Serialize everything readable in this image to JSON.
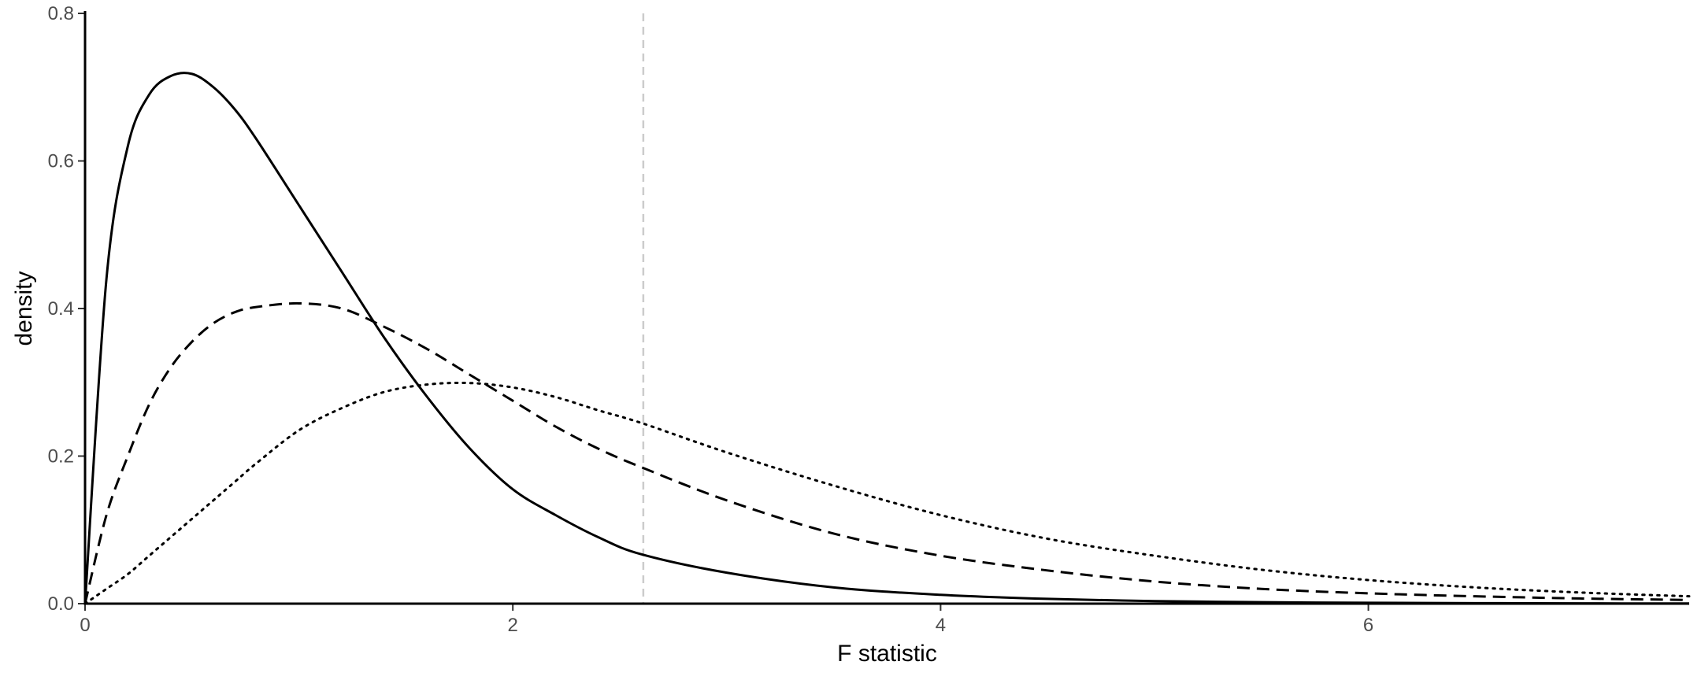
{
  "chart_data": {
    "type": "line",
    "title": "",
    "xlabel": "F statistic",
    "ylabel": "density",
    "xlim": [
      0,
      7.5
    ],
    "ylim": [
      0,
      0.8
    ],
    "x_ticks": [
      0,
      2,
      4,
      6
    ],
    "y_ticks": [
      0.0,
      0.2,
      0.4,
      0.6,
      0.8
    ],
    "x_tick_labels": [
      "0",
      "2",
      "4",
      "6"
    ],
    "y_tick_labels": [
      "0.0",
      "0.2",
      "0.4",
      "0.6",
      "0.8"
    ],
    "grid": false,
    "legend": "none",
    "reference_line": {
      "x": 2.61,
      "style": "dashed",
      "color": "#cccccc"
    },
    "series": [
      {
        "name": "solid",
        "style": "solid",
        "color": "#000000",
        "x": [
          0,
          0.1,
          0.2,
          0.3,
          0.4,
          0.5,
          0.6,
          0.7,
          0.8,
          1.0,
          1.2,
          1.4,
          1.6,
          1.8,
          2.0,
          2.2,
          2.4,
          2.6,
          3.0,
          3.5,
          4.0,
          4.5,
          5.0,
          5.5,
          6.0,
          6.5,
          7.0,
          7.5
        ],
        "values": [
          0,
          0.44,
          0.62,
          0.69,
          0.715,
          0.718,
          0.7,
          0.67,
          0.63,
          0.54,
          0.45,
          0.36,
          0.28,
          0.21,
          0.155,
          0.12,
          0.09,
          0.067,
          0.042,
          0.022,
          0.012,
          0.0065,
          0.0035,
          0.002,
          0.0012,
          0.0007,
          0.0004,
          0.0002
        ]
      },
      {
        "name": "dashed",
        "style": "dashed",
        "color": "#000000",
        "x": [
          0,
          0.1,
          0.2,
          0.3,
          0.4,
          0.5,
          0.6,
          0.7,
          0.8,
          1.0,
          1.2,
          1.4,
          1.6,
          1.8,
          2.0,
          2.2,
          2.4,
          2.6,
          3.0,
          3.5,
          4.0,
          4.5,
          5.0,
          5.5,
          6.0,
          6.5,
          7.0,
          7.5
        ],
        "values": [
          0,
          0.12,
          0.2,
          0.27,
          0.32,
          0.355,
          0.38,
          0.395,
          0.402,
          0.407,
          0.4,
          0.375,
          0.345,
          0.31,
          0.275,
          0.24,
          0.21,
          0.185,
          0.14,
          0.095,
          0.065,
          0.045,
          0.03,
          0.02,
          0.014,
          0.01,
          0.007,
          0.005
        ]
      },
      {
        "name": "dotted",
        "style": "dotted",
        "color": "#000000",
        "x": [
          0,
          0.1,
          0.2,
          0.3,
          0.4,
          0.5,
          0.6,
          0.7,
          0.8,
          1.0,
          1.2,
          1.4,
          1.6,
          1.8,
          2.0,
          2.2,
          2.4,
          2.6,
          3.0,
          3.5,
          4.0,
          4.5,
          5.0,
          5.5,
          6.0,
          6.5,
          7.0,
          7.5
        ],
        "values": [
          0,
          0.02,
          0.04,
          0.065,
          0.09,
          0.115,
          0.14,
          0.165,
          0.19,
          0.235,
          0.265,
          0.287,
          0.297,
          0.299,
          0.293,
          0.28,
          0.262,
          0.245,
          0.205,
          0.16,
          0.12,
          0.088,
          0.065,
          0.046,
          0.032,
          0.022,
          0.015,
          0.01
        ]
      }
    ]
  }
}
